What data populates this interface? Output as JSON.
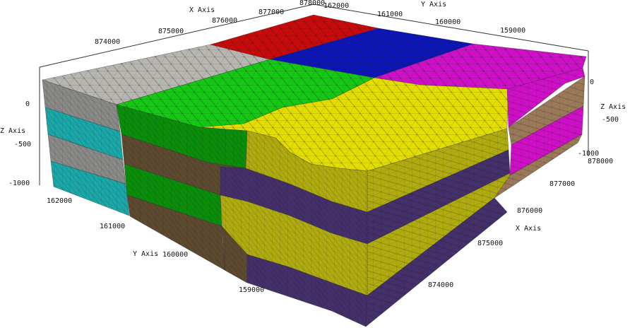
{
  "axes": {
    "x_axis_title_top": "X Axis",
    "x_axis_title_right": "X Axis",
    "y_axis_title_top": "Y Axis",
    "y_axis_title_left": "Y Axis",
    "z_axis_title_left": "Z Axis",
    "z_axis_title_right": "Z Axis",
    "x_ticks_top": [
      "874000",
      "875000",
      "876000",
      "877000",
      "878000"
    ],
    "y_ticks_top": [
      "162000",
      "161000",
      "160000",
      "159000"
    ],
    "z_ticks_left": [
      "0",
      "-500",
      "-1000"
    ],
    "z_ticks_right": [
      "0",
      "-500",
      "-1000"
    ],
    "y_ticks_left": [
      "162000",
      "161000",
      "160000",
      "159000"
    ],
    "x_ticks_right": [
      "878000",
      "877000",
      "876000",
      "875000",
      "874000"
    ]
  },
  "colors": {
    "gray_block": "#b8b6b0",
    "gray_side": "#8a8a88",
    "cyan": "#1aa8a8",
    "green": "#14c814",
    "green_side": "#0b8f0b",
    "brown": "#5e4a30",
    "yellow": "#e4de00",
    "olive": "#b0ac10",
    "purple": "#44306a",
    "red": "#c80a0a",
    "blue": "#0c16b8",
    "magenta": "#d010c8",
    "tan": "#9a7a58"
  }
}
